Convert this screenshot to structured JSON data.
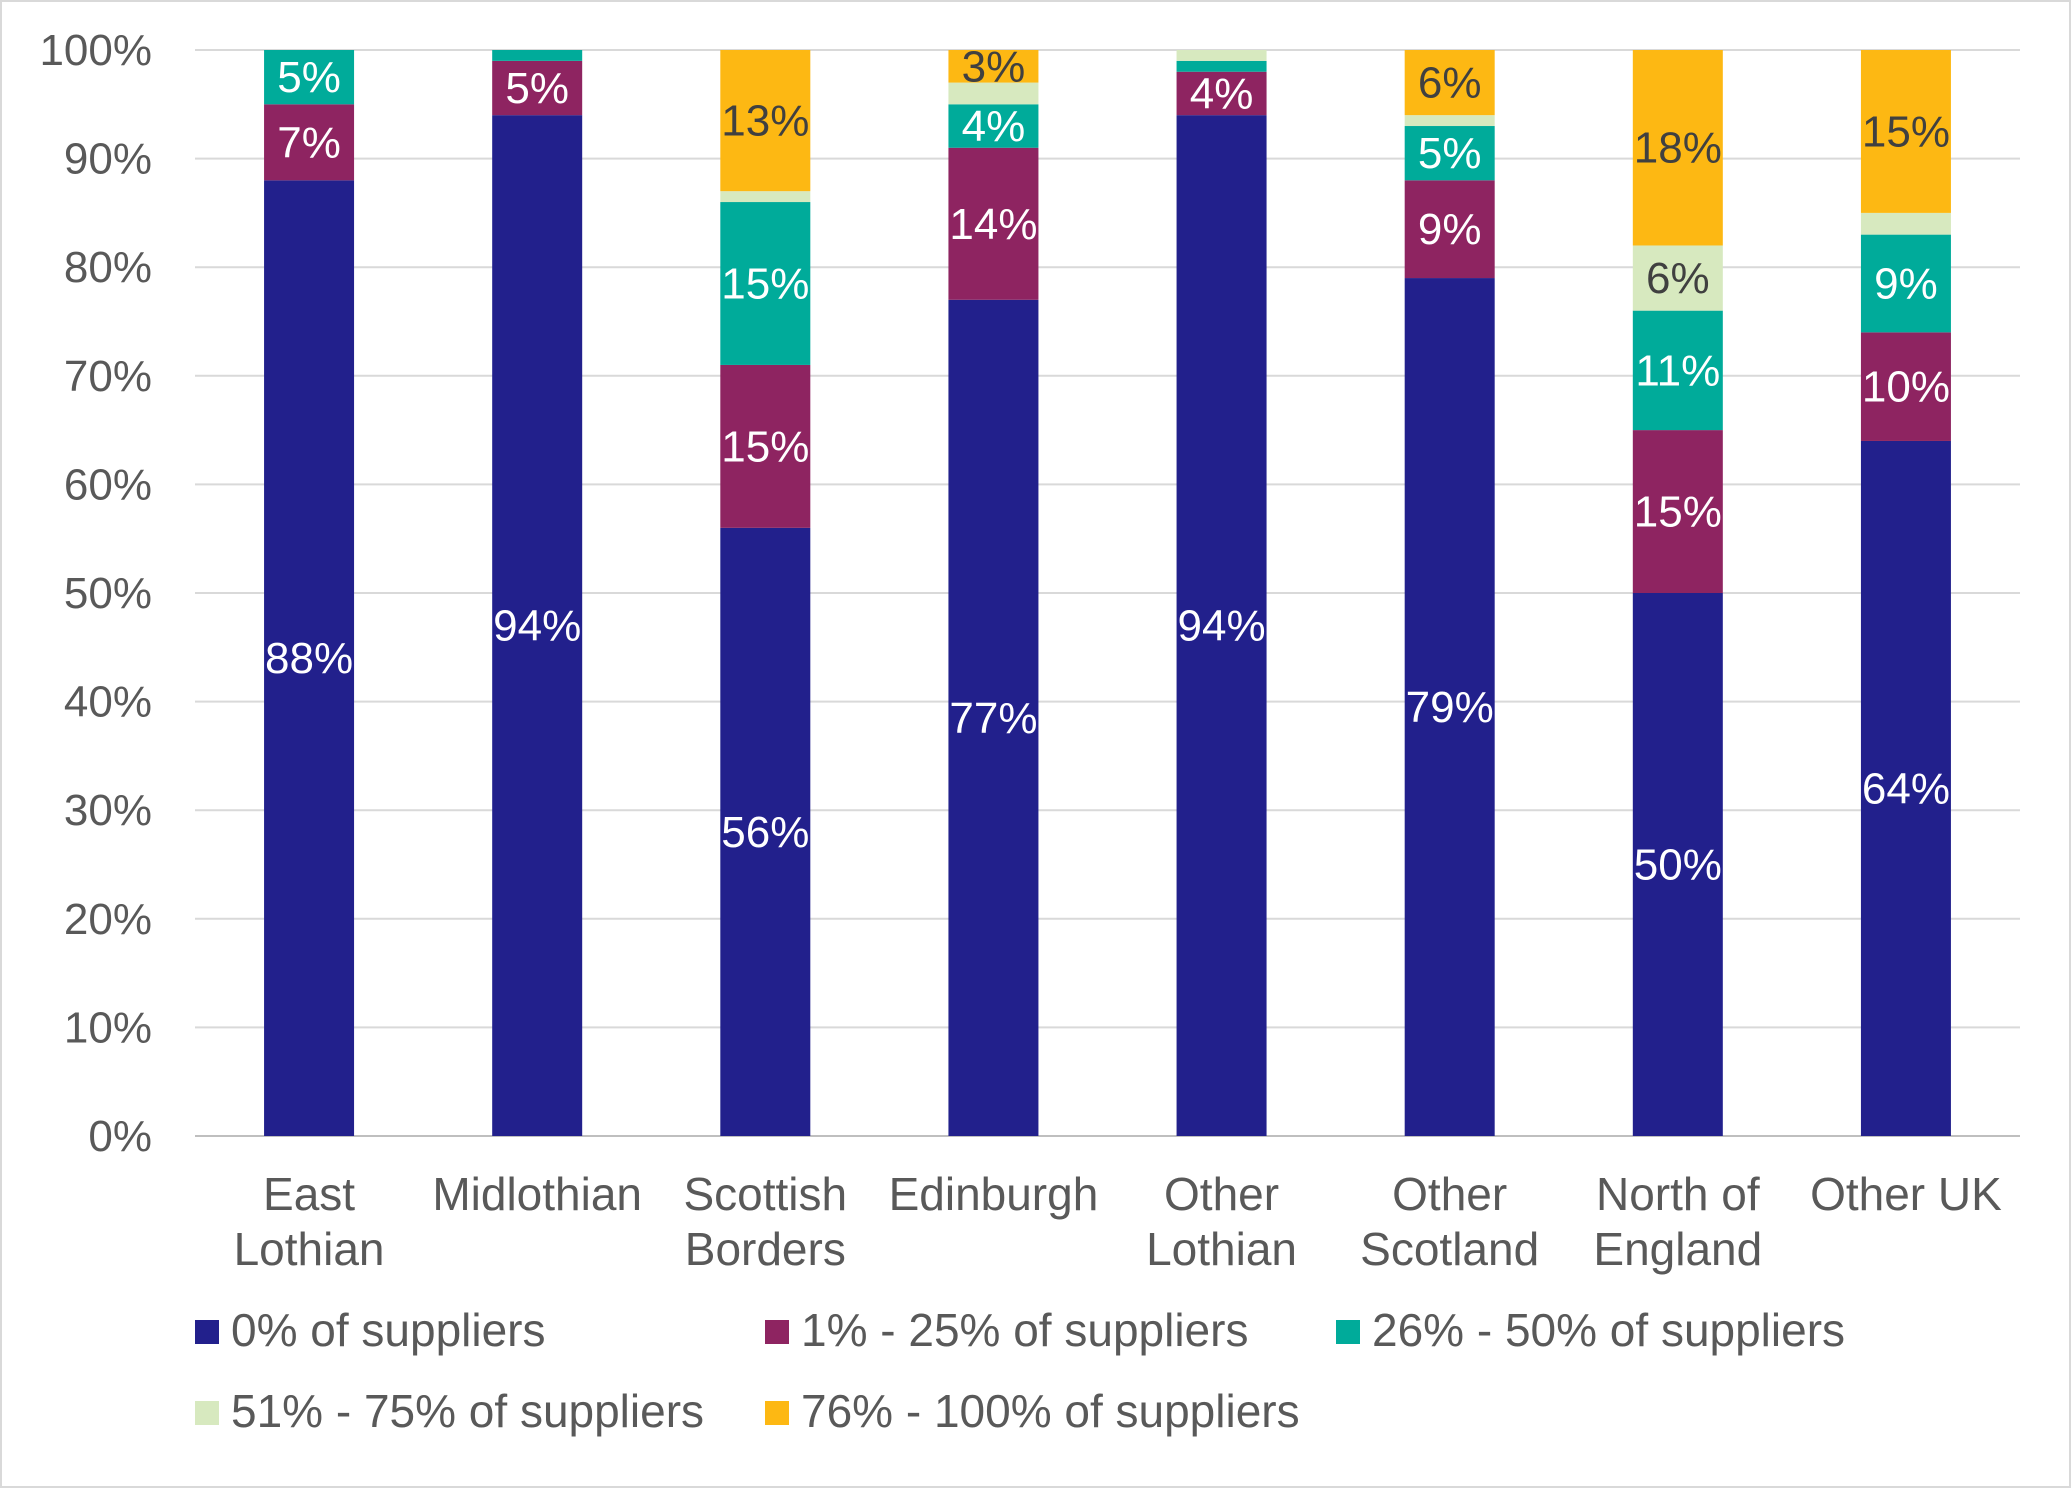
{
  "chart_data": {
    "type": "bar",
    "stacked": true,
    "title": "",
    "xlabel": "",
    "ylabel": "",
    "ylim": [
      0,
      100
    ],
    "y_ticks": [
      "0%",
      "10%",
      "20%",
      "30%",
      "40%",
      "50%",
      "60%",
      "70%",
      "80%",
      "90%",
      "100%"
    ],
    "grid": true,
    "legend_position": "bottom",
    "categories": [
      [
        "East",
        "Lothian"
      ],
      [
        "Midlothian"
      ],
      [
        "Scottish",
        "Borders"
      ],
      [
        "Edinburgh"
      ],
      [
        "Other",
        "Lothian"
      ],
      [
        "Other",
        "Scotland"
      ],
      [
        "North of",
        "England"
      ],
      [
        "Other UK"
      ]
    ],
    "series": [
      {
        "name": "0% of suppliers",
        "color": "#22208C",
        "label_color": "#FFFFFF",
        "values": [
          88,
          94,
          56,
          77,
          94,
          79,
          50,
          64
        ],
        "labels": [
          "88%",
          "94%",
          "56%",
          "77%",
          "94%",
          "79%",
          "50%",
          "64%"
        ]
      },
      {
        "name": "1% - 25% of suppliers",
        "color": "#8E2461",
        "label_color": "#FFFFFF",
        "values": [
          7,
          5,
          15,
          14,
          4,
          9,
          15,
          10
        ],
        "labels": [
          "7%",
          "5%",
          "15%",
          "14%",
          "4%",
          "9%",
          "15%",
          "10%"
        ]
      },
      {
        "name": "26% - 50% of suppliers",
        "color": "#00AB9A",
        "label_color": "#FFFFFF",
        "values": [
          5,
          1,
          15,
          4,
          1,
          5,
          11,
          9
        ],
        "labels": [
          "5%",
          "",
          "15%",
          "4%",
          "",
          "5%",
          "11%",
          "9%"
        ]
      },
      {
        "name": "51% - 75% of suppliers",
        "color": "#D7E9BF",
        "label_color": "#404040",
        "values": [
          0,
          0,
          1,
          2,
          1,
          1,
          6,
          2
        ],
        "labels": [
          "",
          "",
          "",
          "",
          "",
          "",
          "6%",
          ""
        ]
      },
      {
        "name": "76% - 100% of suppliers",
        "color": "#FDB813",
        "label_color": "#404040",
        "values": [
          0,
          0,
          13,
          3,
          0,
          6,
          18,
          15
        ],
        "labels": [
          "",
          "",
          "13%",
          "3%",
          "",
          "6%",
          "18%",
          "15%"
        ]
      }
    ]
  }
}
